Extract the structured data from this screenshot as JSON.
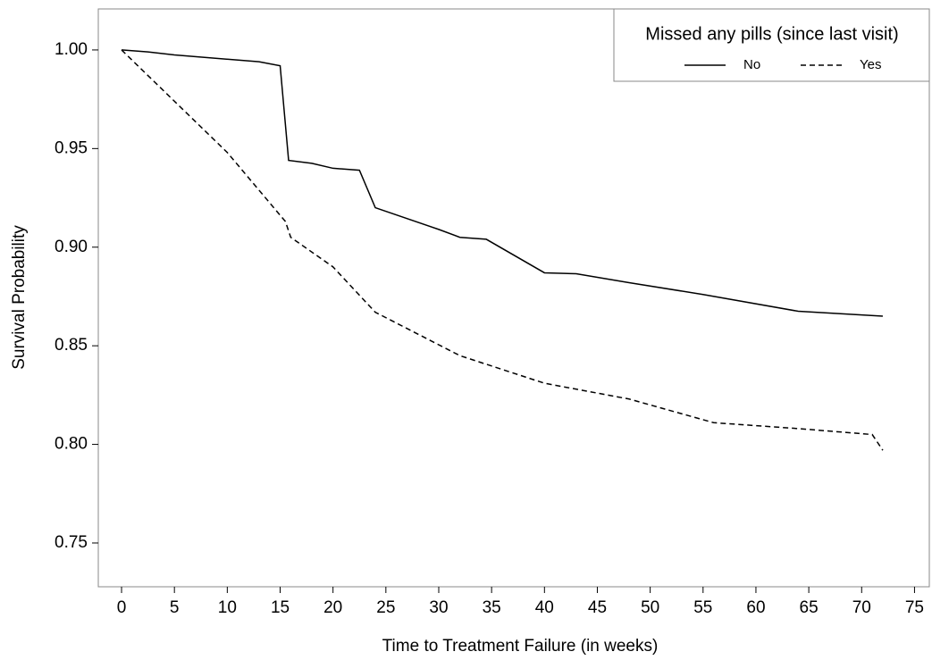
{
  "chart_data": {
    "type": "line",
    "x_label": "Time to Treatment Failure (in weeks)",
    "y_label": "Survival Probability",
    "legend_title": "Missed any pills (since last visit)",
    "legend_position": "top-right",
    "grid": false,
    "xlim": [
      -2.2,
      76.4
    ],
    "ylim": [
      0.7278,
      1.0208
    ],
    "xticks": [
      0,
      5,
      10,
      15,
      20,
      25,
      30,
      35,
      40,
      45,
      50,
      55,
      60,
      65,
      70,
      75
    ],
    "yticks": [
      {
        "value": 0.75,
        "label": "0.75"
      },
      {
        "value": 0.8,
        "label": "0.80"
      },
      {
        "value": 0.85,
        "label": "0.85"
      },
      {
        "value": 0.9,
        "label": "0.90"
      },
      {
        "value": 0.95,
        "label": "0.95"
      },
      {
        "value": 1.0,
        "label": "1.00"
      }
    ],
    "series": [
      {
        "name": "No",
        "color": "#000000",
        "dash": "solid",
        "x": [
          0,
          2.5,
          5,
          13,
          15,
          15.8,
          18,
          20,
          22.5,
          24,
          30,
          32,
          34.5,
          40,
          43,
          48,
          55,
          64,
          72
        ],
        "values": [
          1.0,
          0.999,
          0.9975,
          0.994,
          0.992,
          0.944,
          0.9425,
          0.94,
          0.939,
          0.92,
          0.909,
          0.905,
          0.904,
          0.887,
          0.8865,
          0.882,
          0.876,
          0.8675,
          0.865
        ]
      },
      {
        "name": "Yes",
        "color": "#000000",
        "dash": "dashed",
        "x": [
          0,
          10,
          15.5,
          16,
          20,
          24,
          32,
          40,
          48,
          56,
          64,
          71,
          72
        ],
        "values": [
          1.0,
          0.948,
          0.913,
          0.905,
          0.89,
          0.867,
          0.845,
          0.831,
          0.823,
          0.811,
          0.808,
          0.805,
          0.797
        ]
      }
    ]
  }
}
